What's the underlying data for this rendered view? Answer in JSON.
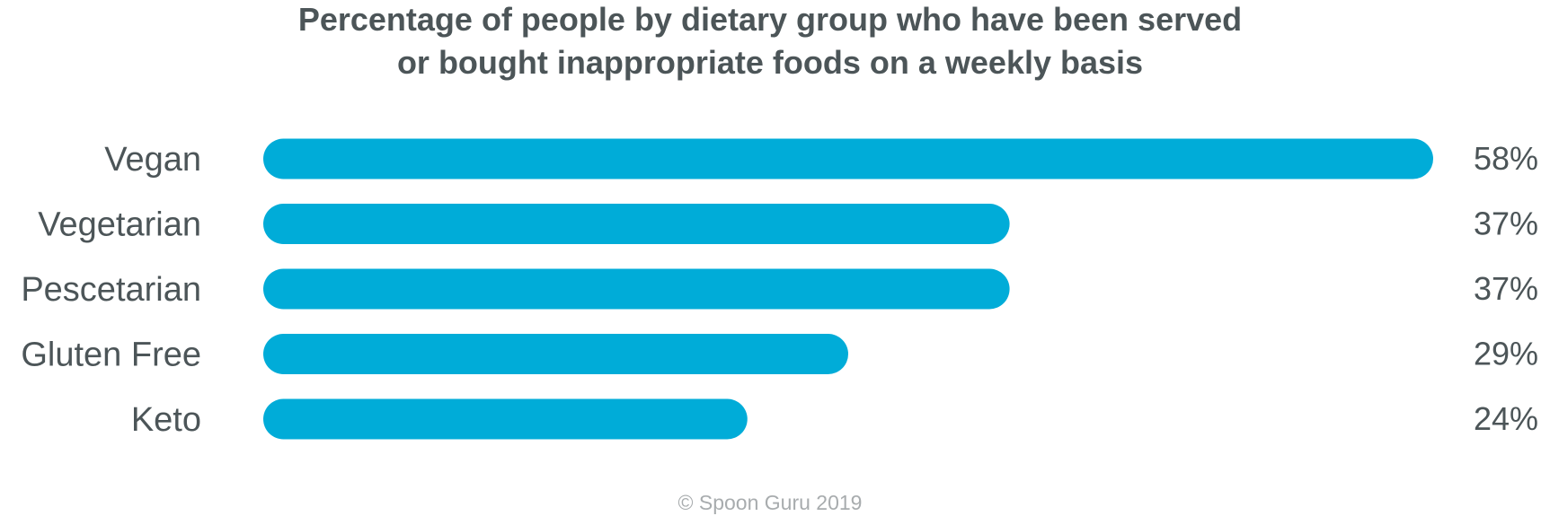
{
  "chart_data": {
    "type": "bar",
    "orientation": "horizontal",
    "title_lines": [
      "Percentage of people by dietary group who have been served",
      "or bought inappropriate foods on a weekly basis"
    ],
    "categories": [
      "Vegan",
      "Vegetarian",
      "Pescetarian",
      "Gluten Free",
      "Keto"
    ],
    "values": [
      58,
      37,
      37,
      29,
      24
    ],
    "value_labels": [
      "58%",
      "37%",
      "37%",
      "29%",
      "24%"
    ],
    "unit": "%",
    "xlim": [
      0,
      58
    ],
    "bar_color": "#00acd8",
    "text_color": "#4c5558",
    "grid": false,
    "legend": "none"
  },
  "footer": {
    "text": "© Spoon Guru 2019"
  }
}
